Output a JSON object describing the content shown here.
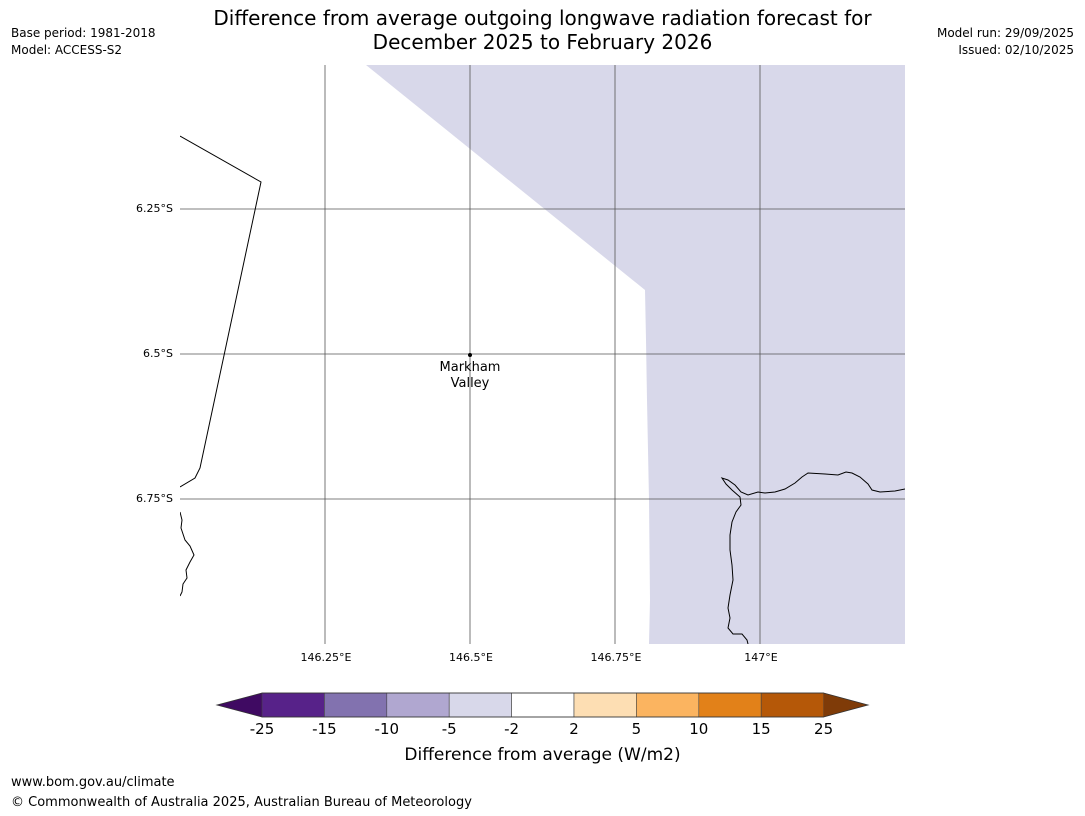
{
  "header": {
    "title_line1": "Difference from average outgoing longwave radiation forecast for",
    "title_line2": "December 2025 to February 2026",
    "base_period": "Base period: 1981-2018",
    "model": "Model: ACCESS-S2",
    "model_run": "Model run: 29/09/2025",
    "issued": "Issued: 02/10/2025"
  },
  "map": {
    "lat_labels": [
      "6.25°S",
      "6.5°S",
      "6.75°S"
    ],
    "lon_labels": [
      "146.25°E",
      "146.5°E",
      "146.75°E",
      "147°E"
    ],
    "place": {
      "line1": "Markham",
      "line2": "Valley"
    },
    "shaded_category": "-5 to -2",
    "colors": {
      "shade": "#d8d8ea",
      "grid": "#555555",
      "coast": "#000000"
    }
  },
  "colorbar": {
    "label": "Difference from average (W/m2)",
    "ticks": [
      "-25",
      "-15",
      "-10",
      "-5",
      "-2",
      "2",
      "5",
      "10",
      "15",
      "25"
    ],
    "colors": [
      "#3f0a62",
      "#572289",
      "#8272af",
      "#b0a7d0",
      "#d8d8ea",
      "#ffffff",
      "#fddeb3",
      "#fbb460",
      "#e28119",
      "#b55808",
      "#7f3b08"
    ]
  },
  "footer": {
    "url": "www.bom.gov.au/climate",
    "copyright": "© Commonwealth of Australia 2025, Australian Bureau of Meteorology"
  }
}
